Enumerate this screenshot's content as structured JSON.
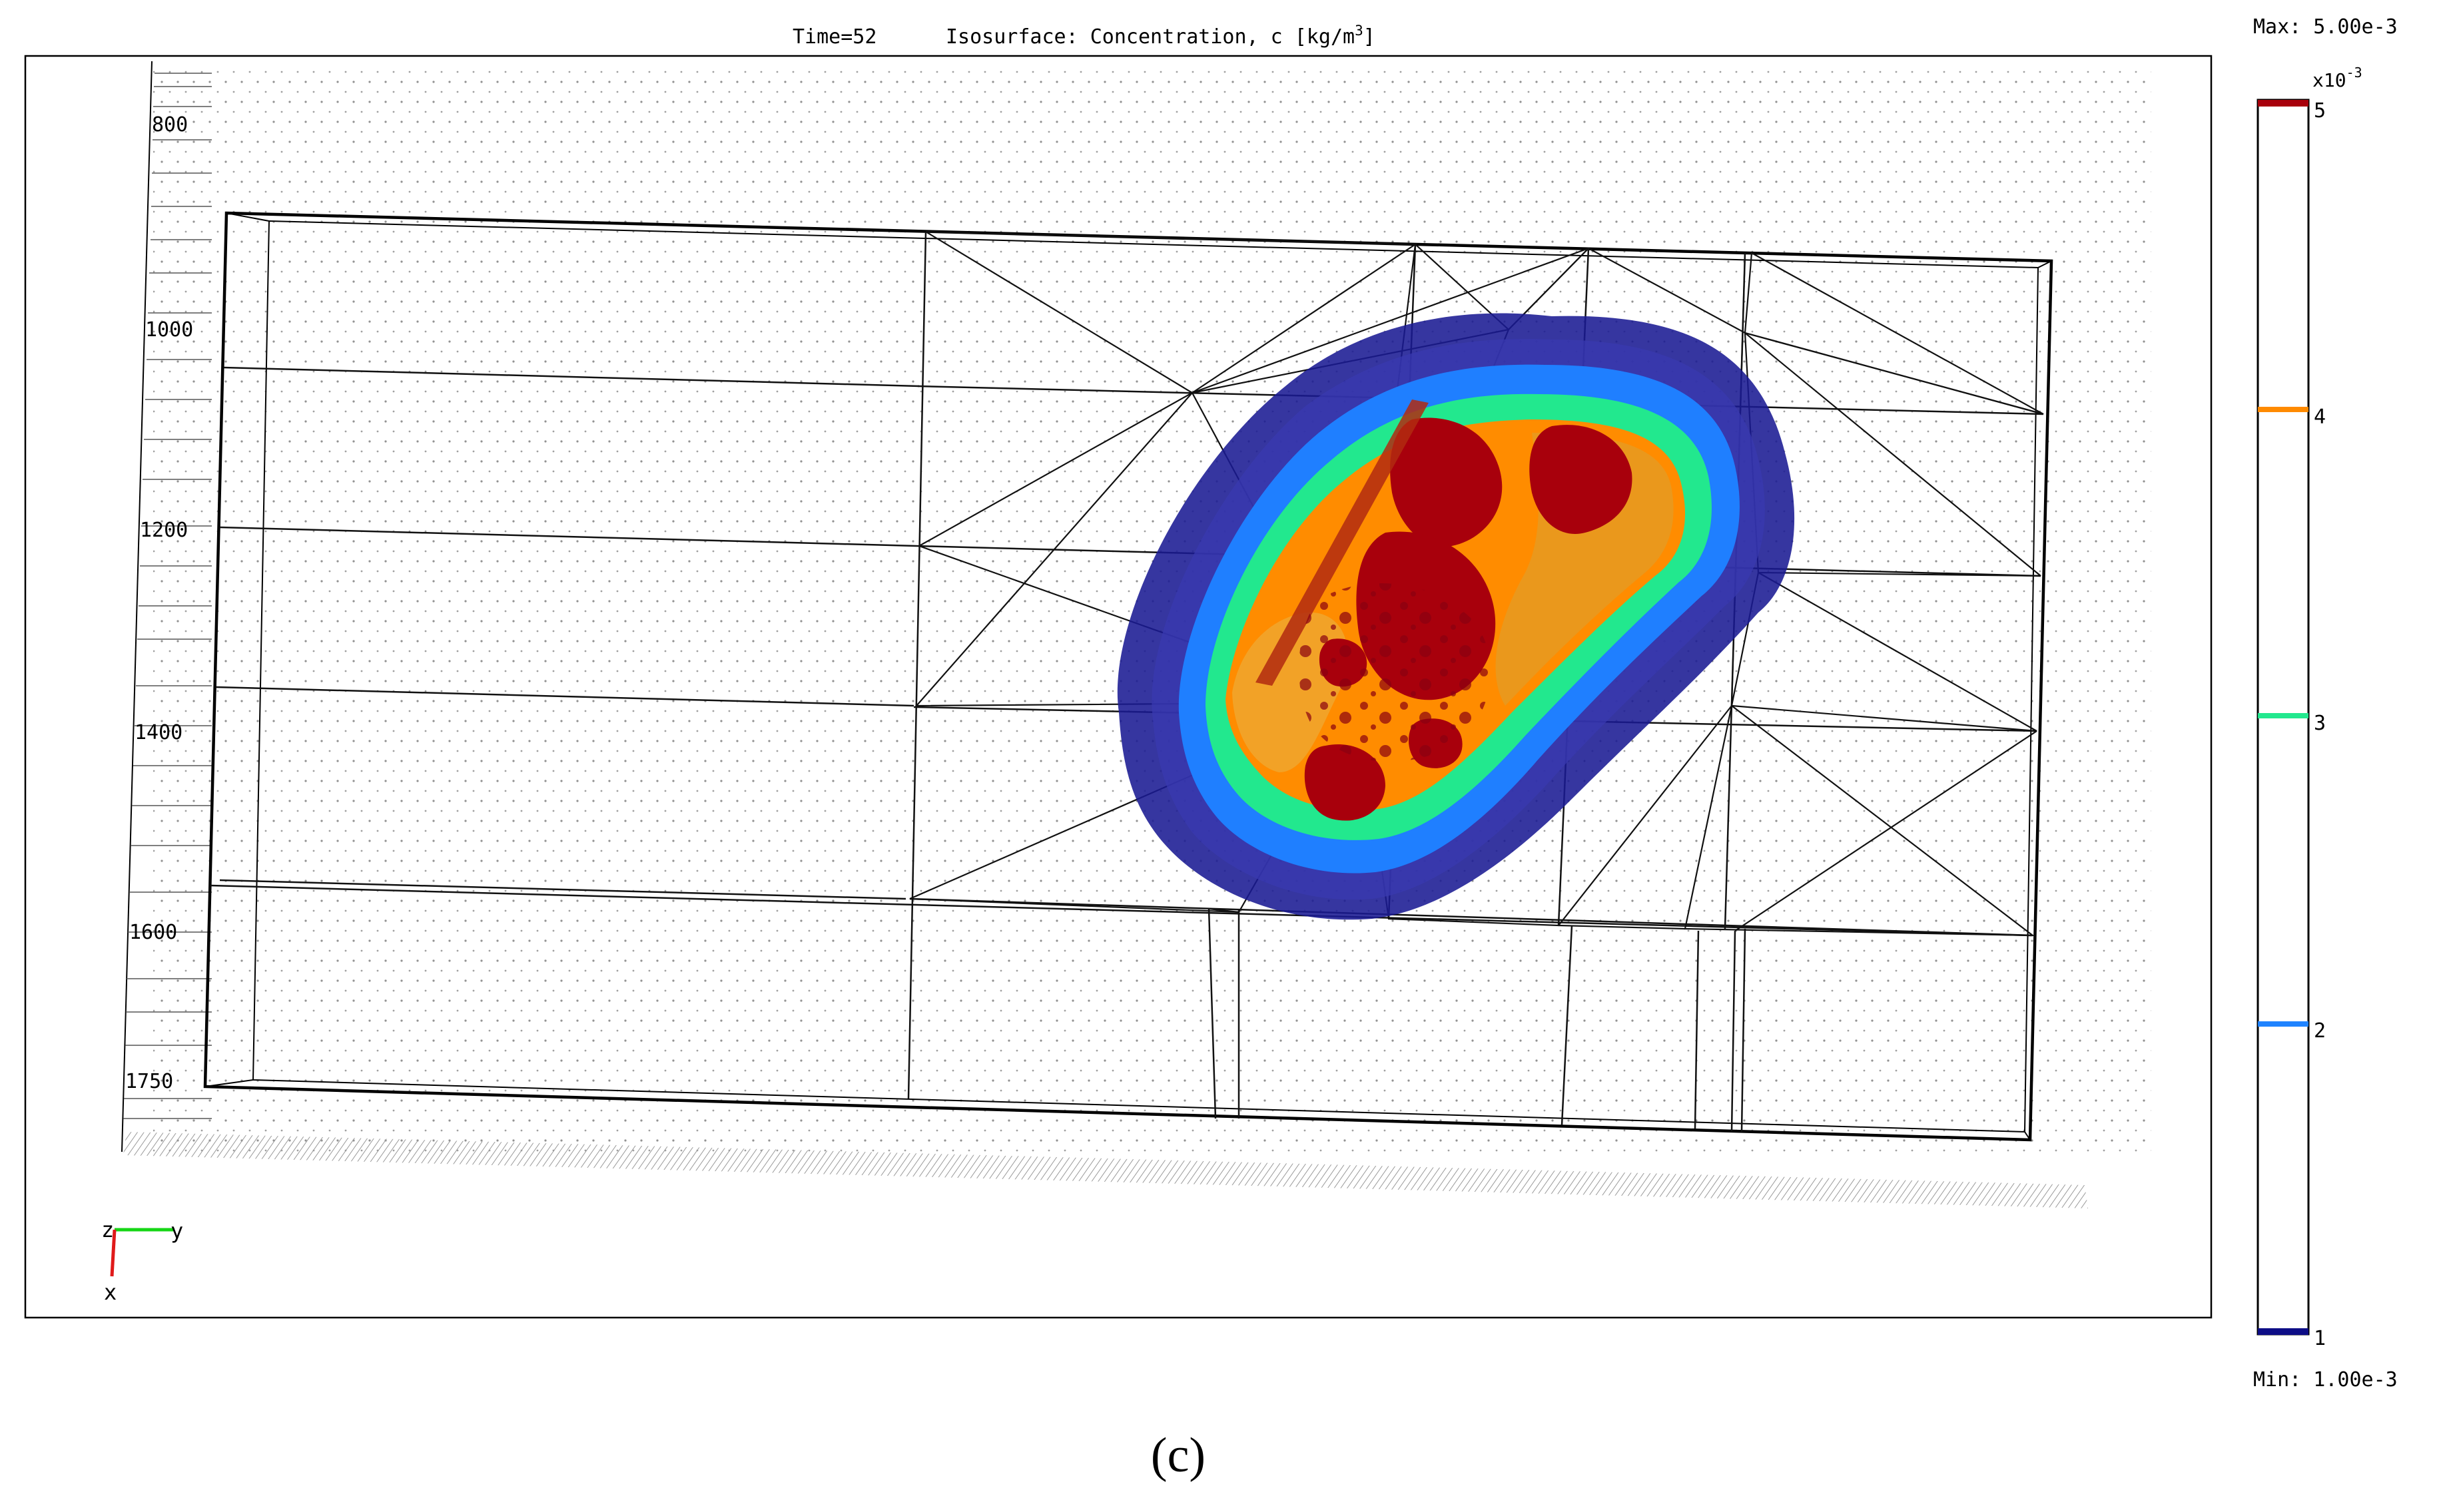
{
  "header": {
    "time_label": "Time=52",
    "plot_title": "Isosurface: Concentration, c [kg/m",
    "plot_title_sup": "3",
    "plot_title_end": "]"
  },
  "colorbar": {
    "max_label": "Max: 5.00e-3",
    "min_label": "Min: 1.00e-3",
    "multiplier_base": "x10",
    "multiplier_exp": "-3",
    "colormap": [
      "#0d0d86",
      "#1f83ff",
      "#22e88e",
      "#ff8a00",
      "#a8000c"
    ]
  },
  "axes_triad": {
    "z": "z",
    "y": "y",
    "x": "x"
  },
  "caption": "(c)",
  "chart_data": {
    "type": "other",
    "description_visible": "3D isosurface of concentration in mesh domain",
    "depth_ticks": [
      "800",
      "1000",
      "1200",
      "1400",
      "1600",
      "1750"
    ],
    "isosurface_levels": [
      {
        "value": 1,
        "label": "1",
        "color": "#0d0d86"
      },
      {
        "value": 2,
        "label": "2",
        "color": "#1f83ff"
      },
      {
        "value": 3,
        "label": "3",
        "color": "#22e88e"
      },
      {
        "value": 4,
        "label": "4",
        "color": "#ff8a00"
      },
      {
        "value": 5,
        "label": "5",
        "color": "#a8000c"
      }
    ],
    "colorbar_range": [
      1,
      5
    ],
    "time": 52
  }
}
